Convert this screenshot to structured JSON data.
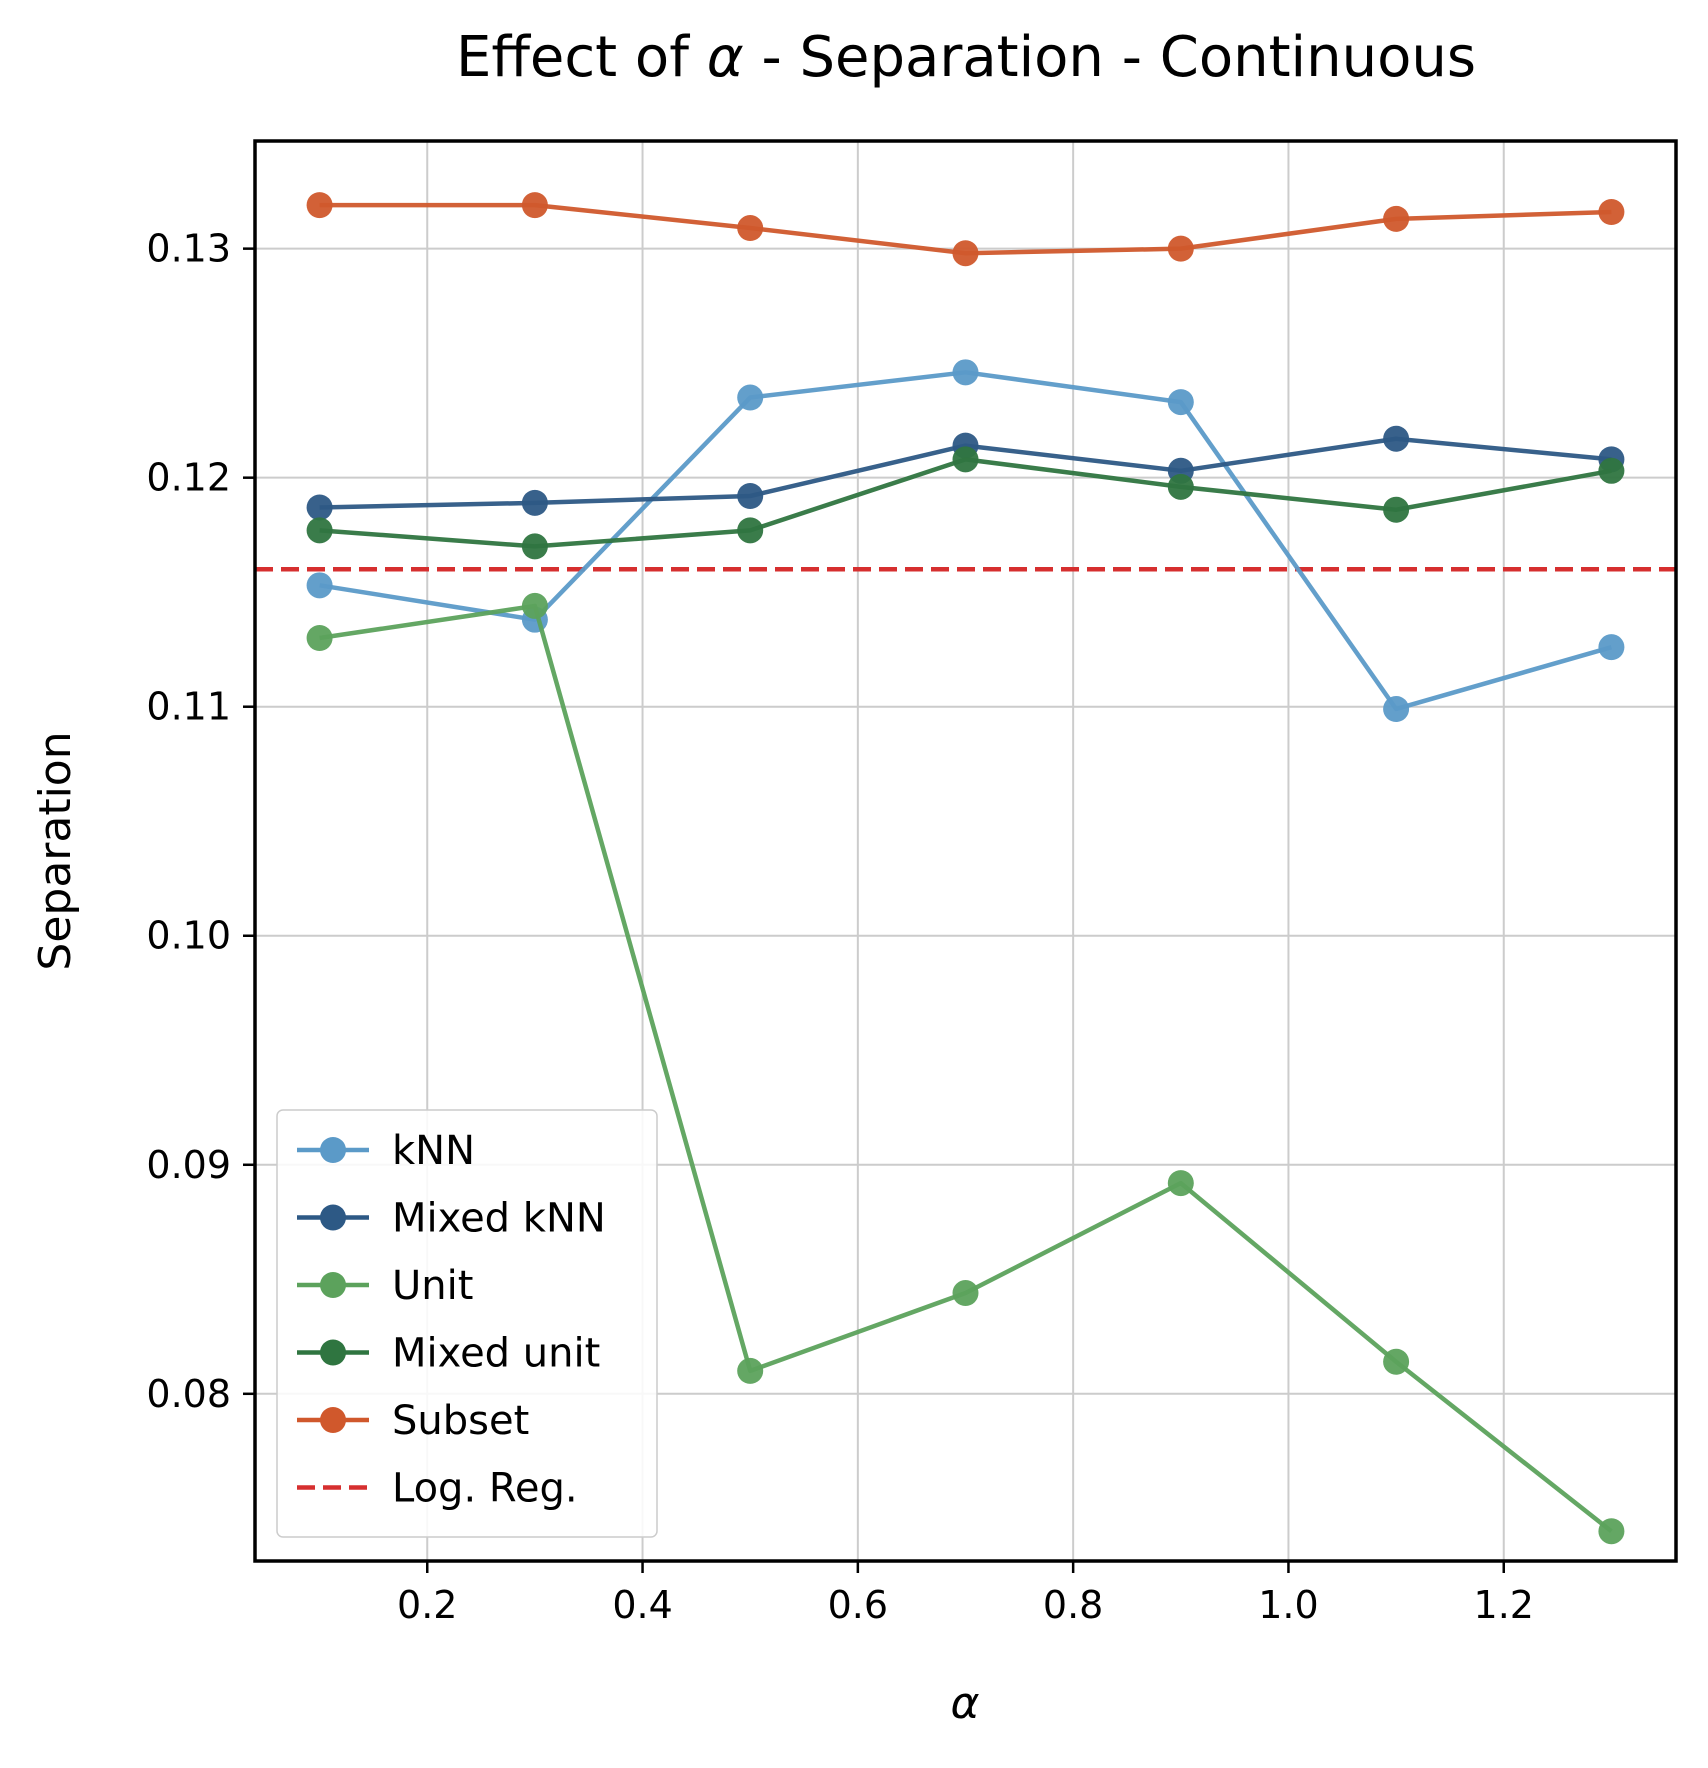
{
  "chart_data": {
    "type": "line",
    "title": {
      "prefix": "Effect of ",
      "symbol": "α",
      "suffix": " - Separation - Continuous"
    },
    "xlabel": "α",
    "ylabel": "Separation",
    "xlim": [
      0.04,
      1.36
    ],
    "ylim": [
      0.0727,
      0.1347
    ],
    "grid": true,
    "legend_position": "lower-left",
    "x": [
      0.1,
      0.3,
      0.5,
      0.7,
      0.9,
      1.1,
      1.3
    ],
    "x_ticks": [
      {
        "value": 0.2,
        "label": "0.2"
      },
      {
        "value": 0.4,
        "label": "0.4"
      },
      {
        "value": 0.6,
        "label": "0.6"
      },
      {
        "value": 0.8,
        "label": "0.8"
      },
      {
        "value": 1.0,
        "label": "1.0"
      },
      {
        "value": 1.2,
        "label": "1.2"
      }
    ],
    "y_ticks": [
      {
        "value": 0.08,
        "label": "0.08"
      },
      {
        "value": 0.09,
        "label": "0.09"
      },
      {
        "value": 0.1,
        "label": "0.10"
      },
      {
        "value": 0.11,
        "label": "0.11"
      },
      {
        "value": 0.12,
        "label": "0.12"
      },
      {
        "value": 0.13,
        "label": "0.13"
      }
    ],
    "series": [
      {
        "name": "kNN",
        "key": "knn",
        "color": "#5b9ac8",
        "values": [
          0.1153,
          0.1138,
          0.1235,
          0.1246,
          0.1233,
          0.1099,
          0.1126
        ]
      },
      {
        "name": "Mixed kNN",
        "key": "mixed-knn",
        "color": "#2d5985",
        "values": [
          0.1187,
          0.1189,
          0.1192,
          0.1214,
          0.1203,
          0.1217,
          0.1208
        ]
      },
      {
        "name": "Unit",
        "key": "unit",
        "color": "#5ca25c",
        "values": [
          0.113,
          0.1144,
          0.081,
          0.0844,
          0.0892,
          0.0814,
          0.074
        ]
      },
      {
        "name": "Mixed unit",
        "key": "mixed-unit",
        "color": "#2f7540",
        "values": [
          0.1177,
          0.117,
          0.1177,
          0.1208,
          0.1196,
          0.1186,
          0.1203
        ]
      },
      {
        "name": "Subset",
        "key": "subset",
        "color": "#d0582c",
        "values": [
          0.1319,
          0.1319,
          0.1309,
          0.1298,
          0.13,
          0.1313,
          0.1316
        ]
      }
    ],
    "reference_line": {
      "name": "Log. Reg.",
      "value": 0.116,
      "color": "#d62f2f",
      "style": "dashed"
    }
  }
}
